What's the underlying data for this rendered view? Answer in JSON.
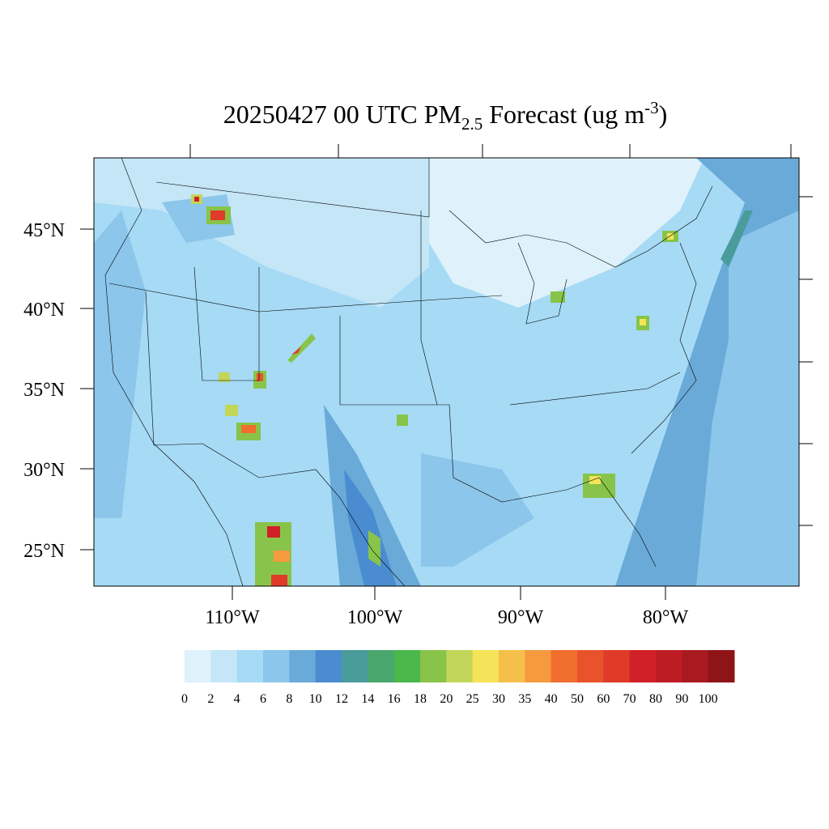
{
  "title": {
    "main": "20250427 00 UTC PM",
    "subscript": "2.5",
    "middle": " Forecast (ug m",
    "superscript": "-3",
    "end": ")"
  },
  "latitude_labels": [
    "45°N",
    "40°N",
    "35°N",
    "30°N",
    "25°N"
  ],
  "longitude_labels": [
    "110°W",
    "100°W",
    "90°W",
    "80°W"
  ],
  "colorbar": {
    "levels": [
      0,
      2,
      4,
      6,
      8,
      10,
      12,
      14,
      16,
      18,
      20,
      25,
      30,
      35,
      40,
      50,
      60,
      70,
      80,
      90,
      100
    ],
    "colors": [
      "#dff1fa",
      "#c4e6f7",
      "#a6daf5",
      "#8cc6ea",
      "#6aaad9",
      "#4a8ccf",
      "#4a9b9b",
      "#4aa86e",
      "#4ab84a",
      "#88c44a",
      "#c2d65a",
      "#f5e35a",
      "#f5c04a",
      "#f59a3e",
      "#f06e2e",
      "#e8532b",
      "#e03a28",
      "#d02028",
      "#be1c24",
      "#a81a20",
      "#8e1418"
    ]
  }
}
